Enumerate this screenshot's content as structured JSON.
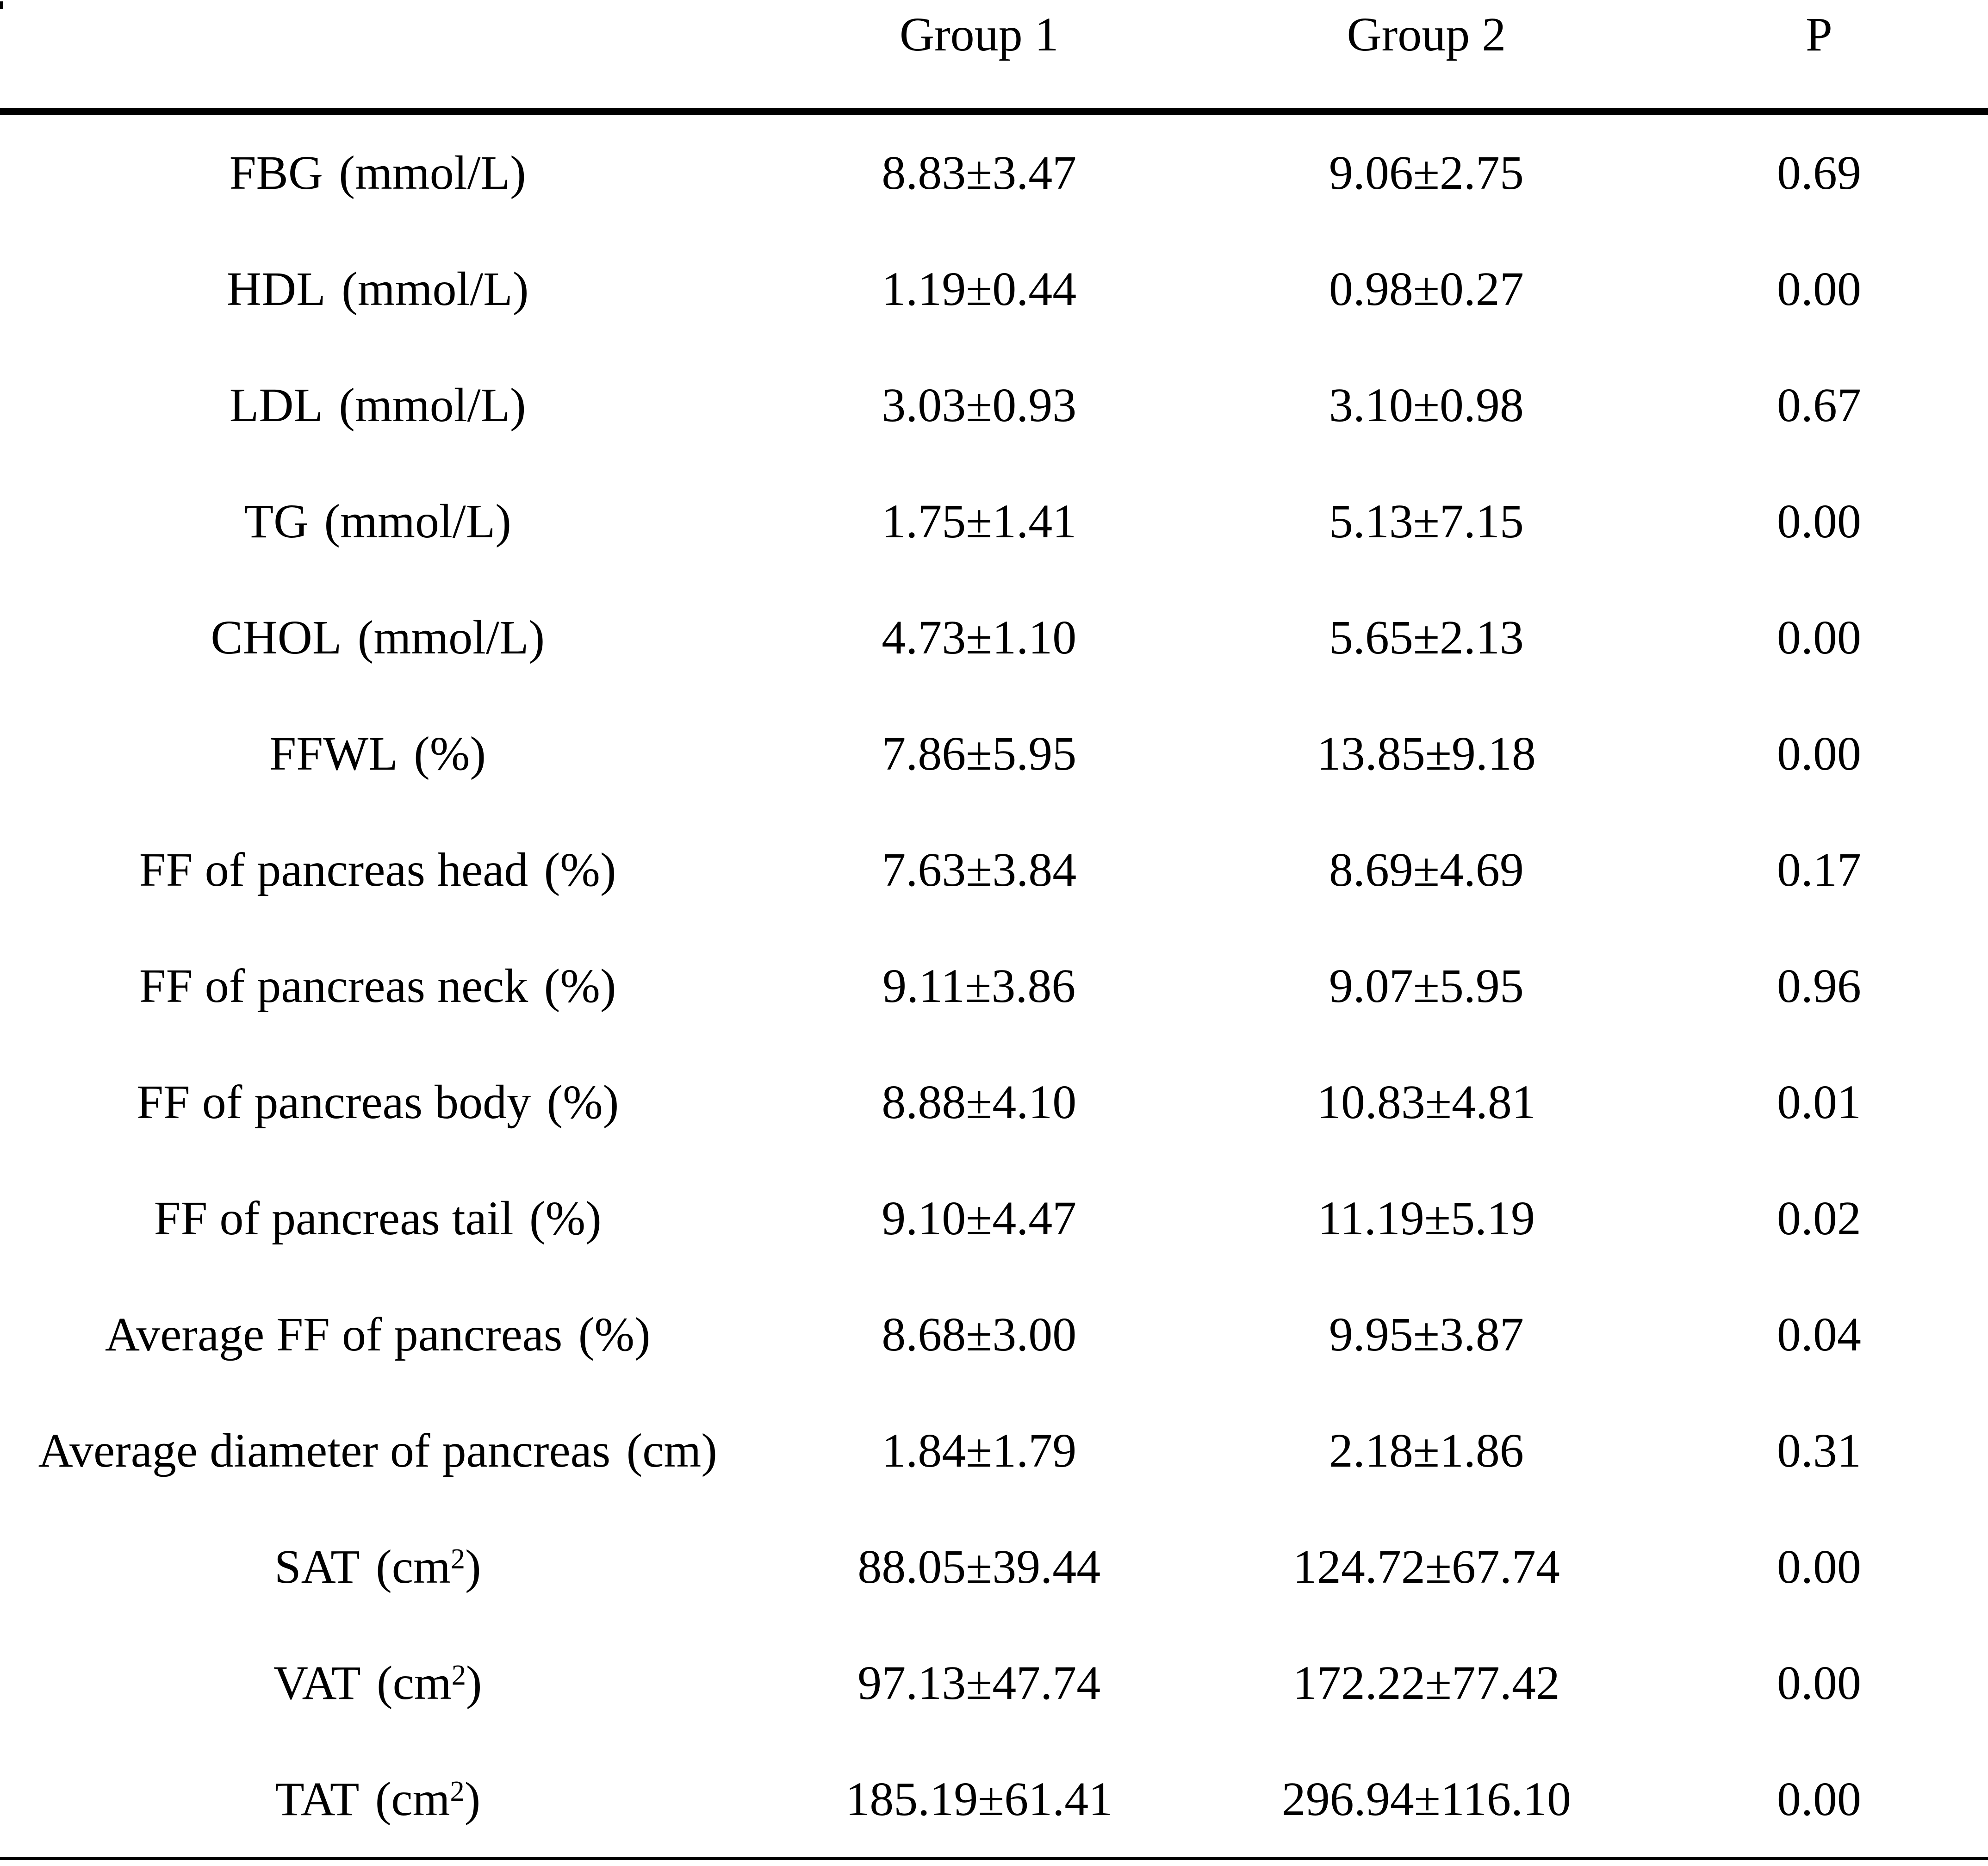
{
  "table": {
    "columns": [
      "",
      "Group 1",
      "Group 2",
      "P"
    ],
    "punctuation": {
      "open_paren": "(",
      "close_paren": ")"
    },
    "rows": [
      {
        "name": "FBG",
        "unit": "mmol/L",
        "sup": "",
        "group1": "8.83±3.47",
        "group2": "9.06±2.75",
        "p": "0.69"
      },
      {
        "name": "HDL",
        "unit": "mmol/L",
        "sup": "",
        "group1": "1.19±0.44",
        "group2": "0.98±0.27",
        "p": "0.00"
      },
      {
        "name": "LDL",
        "unit": "mmol/L",
        "sup": "",
        "group1": "3.03±0.93",
        "group2": "3.10±0.98",
        "p": "0.67"
      },
      {
        "name": "TG",
        "unit": "mmol/L",
        "sup": "",
        "group1": "1.75±1.41",
        "group2": "5.13±7.15",
        "p": "0.00"
      },
      {
        "name": "CHOL",
        "unit": "mmol/L",
        "sup": "",
        "group1": "4.73±1.10",
        "group2": "5.65±2.13",
        "p": "0.00"
      },
      {
        "name": "FFWL",
        "unit": "%",
        "sup": "",
        "group1": "7.86±5.95",
        "group2": "13.85±9.18",
        "p": "0.00"
      },
      {
        "name": "FF of pancreas head",
        "unit": "%",
        "sup": "",
        "group1": "7.63±3.84",
        "group2": "8.69±4.69",
        "p": "0.17"
      },
      {
        "name": "FF of pancreas neck",
        "unit": "%",
        "sup": "",
        "group1": "9.11±3.86",
        "group2": "9.07±5.95",
        "p": "0.96"
      },
      {
        "name": "FF of pancreas body",
        "unit": "%",
        "sup": "",
        "group1": "8.88±4.10",
        "group2": "10.83±4.81",
        "p": "0.01"
      },
      {
        "name": "FF of pancreas tail",
        "unit": "%",
        "sup": "",
        "group1": "9.10±4.47",
        "group2": "11.19±5.19",
        "p": "0.02"
      },
      {
        "name": "Average FF of pancreas",
        "unit": "%",
        "sup": "",
        "group1": "8.68±3.00",
        "group2": "9.95±3.87",
        "p": "0.04"
      },
      {
        "name": "Average diameter of pancreas",
        "unit": "cm",
        "sup": "",
        "group1": "1.84±1.79",
        "group2": "2.18±1.86",
        "p": "0.31"
      },
      {
        "name": "SAT",
        "unit": "cm",
        "sup": "2",
        "group1": "88.05±39.44",
        "group2": "124.72±67.74",
        "p": "0.00"
      },
      {
        "name": "VAT",
        "unit": "cm",
        "sup": "2",
        "group1": "97.13±47.74",
        "group2": "172.22±77.42",
        "p": "0.00"
      },
      {
        "name": "TAT",
        "unit": "cm",
        "sup": "2",
        "group1": "185.19±61.41",
        "group2": "296.94±116.10",
        "p": "0.00"
      }
    ]
  }
}
